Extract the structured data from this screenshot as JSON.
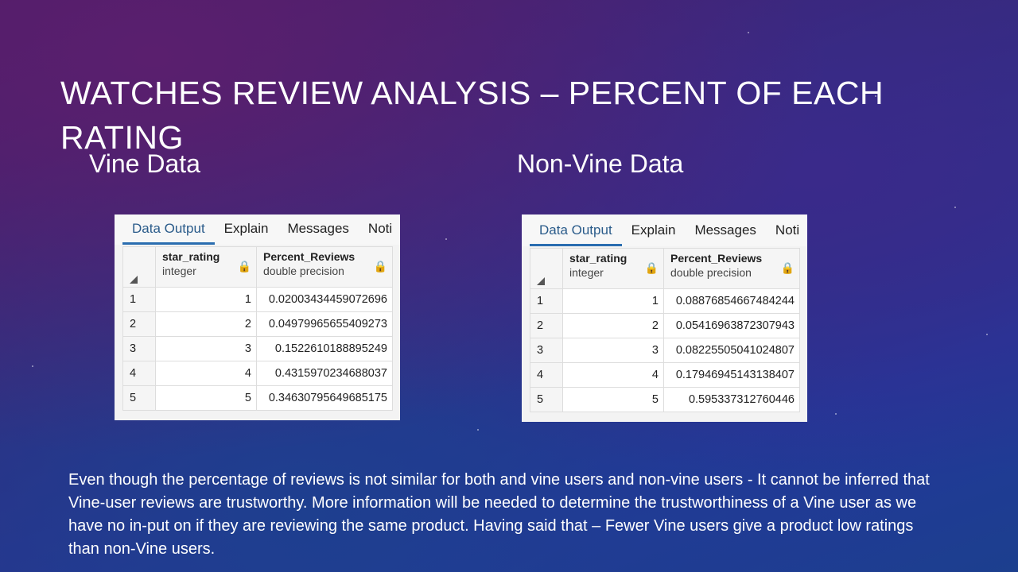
{
  "slide": {
    "title": "WATCHES REVIEW ANALYSIS – PERCENT OF EACH RATING",
    "conclusion": "Even though the percentage of reviews is not similar for both and vine users and non-vine users - It cannot be inferred that Vine-user reviews are trustworthy. More information will be needed to determine the trustworthiness of a Vine user as we have no in-put on if they are reviewing the same product. Having said that – Fewer Vine users give a product low ratings than non-Vine users."
  },
  "vine": {
    "label": "Vine Data",
    "tabs": [
      "Data Output",
      "Explain",
      "Messages",
      "Noti"
    ],
    "columns": [
      {
        "name": "star_rating",
        "type": "integer"
      },
      {
        "name": "Percent_Reviews",
        "type": "double precision"
      }
    ],
    "rows": [
      {
        "n": "1",
        "star": "1",
        "pct": "0.02003434459072696"
      },
      {
        "n": "2",
        "star": "2",
        "pct": "0.04979965655409273"
      },
      {
        "n": "3",
        "star": "3",
        "pct": "0.1522610188895249"
      },
      {
        "n": "4",
        "star": "4",
        "pct": "0.4315970234688037"
      },
      {
        "n": "5",
        "star": "5",
        "pct": "0.34630795649685175"
      }
    ]
  },
  "nonvine": {
    "label": "Non-Vine Data",
    "tabs": [
      "Data Output",
      "Explain",
      "Messages",
      "Noti"
    ],
    "columns": [
      {
        "name": "star_rating",
        "type": "integer"
      },
      {
        "name": "Percent_Reviews",
        "type": "double precision"
      }
    ],
    "rows": [
      {
        "n": "1",
        "star": "1",
        "pct": "0.08876854667484244"
      },
      {
        "n": "2",
        "star": "2",
        "pct": "0.05416963872307943"
      },
      {
        "n": "3",
        "star": "3",
        "pct": "0.08225505041024807"
      },
      {
        "n": "4",
        "star": "4",
        "pct": "0.17946945143138407"
      },
      {
        "n": "5",
        "star": "5",
        "pct": "0.595337312760446"
      }
    ]
  }
}
